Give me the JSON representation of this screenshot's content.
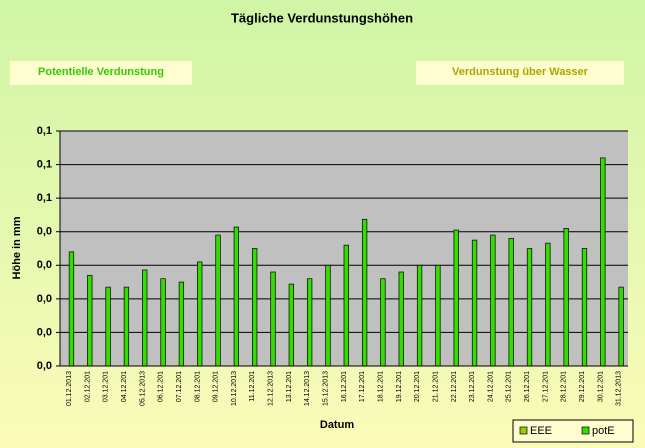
{
  "chart_data": {
    "type": "bar",
    "title": "Tägliche Verdunstungshöhen",
    "annotations": [
      "Potentielle Verdunstung",
      "Verdunstung über Wasser"
    ],
    "x_label": "Datum",
    "y_label": "Höhe in mm",
    "categories": [
      "01.12.2013",
      "02.12.201",
      "03.12.201",
      "04.12.201",
      "05.12.2013",
      "06.12.201",
      "07.12.201",
      "08.12.201",
      "09.12.201",
      "10.12.2013",
      "11.12.201",
      "12.12.2013",
      "13.12.201",
      "14.12.2013",
      "15.12.2013",
      "16.12.201",
      "17.12.201",
      "18.12.201",
      "19.12.201",
      "20.12.201",
      "21.12.201",
      "22.12.201",
      "23.12.201",
      "24.12.201",
      "25.12.201",
      "26.12.201",
      "27.12.201",
      "28.12.201",
      "29.12.201",
      "30.12.201",
      "31.12.2013"
    ],
    "series": [
      {
        "name": "EEE",
        "color": "#99cc00",
        "values": [
          null,
          null,
          null,
          null,
          null,
          null,
          null,
          null,
          null,
          null,
          null,
          null,
          null,
          null,
          null,
          null,
          null,
          null,
          null,
          null,
          null,
          null,
          null,
          null,
          null,
          null,
          null,
          null,
          null,
          null,
          null
        ]
      },
      {
        "name": "potE",
        "color": "#33dd00",
        "values": [
          0.034,
          0.027,
          0.0235,
          0.0235,
          0.0286,
          0.026,
          0.025,
          0.031,
          0.039,
          0.0414,
          0.035,
          0.028,
          0.0244,
          0.026,
          0.03,
          0.036,
          0.0437,
          0.026,
          0.028,
          0.03,
          0.03,
          0.0405,
          0.0375,
          0.039,
          0.038,
          0.035,
          0.0366,
          0.041,
          0.035,
          0.062,
          0.0235
        ]
      }
    ],
    "ylim": [
      0,
      0.07
    ],
    "yticks": [
      {
        "value": 0,
        "label": "0,0"
      },
      {
        "value": 0.01,
        "label": "0,0"
      },
      {
        "value": 0.02,
        "label": "0,0"
      },
      {
        "value": 0.03,
        "label": "0,0"
      },
      {
        "value": 0.04,
        "label": "0,0"
      },
      {
        "value": 0.05,
        "label": "0,1"
      },
      {
        "value": 0.06,
        "label": "0,1"
      },
      {
        "value": 0.07,
        "label": "0,1"
      }
    ],
    "grid": true
  }
}
